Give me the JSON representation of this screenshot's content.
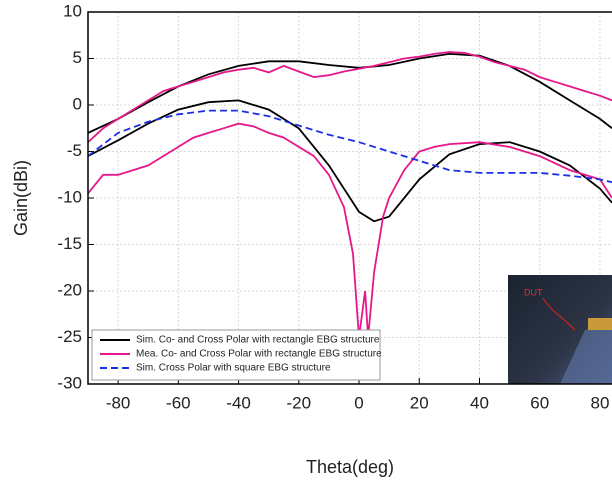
{
  "chart_data": {
    "type": "line",
    "x_label": "Theta(deg)",
    "y_label": "Gain(dBi)",
    "xlim": [
      -90,
      84
    ],
    "ylim": [
      -30,
      10
    ],
    "xticks": [
      -80,
      -60,
      -40,
      -20,
      0,
      20,
      40,
      60,
      80
    ],
    "yticks": [
      -30,
      -25,
      -20,
      -15,
      -10,
      -5,
      0,
      5,
      10
    ],
    "grid": true,
    "legend": "lower left",
    "inset_label": "DUT",
    "series": [
      {
        "name": "Sim. Co- and Cross Polar with rectangle EBG structure",
        "color": "#000000",
        "dash": false,
        "x": [
          -90,
          -80,
          -70,
          -60,
          -50,
          -40,
          -30,
          -20,
          -10,
          0,
          10,
          20,
          30,
          40,
          50,
          60,
          70,
          80,
          84,
          null,
          -90,
          -80,
          -70,
          -60,
          -50,
          -40,
          -30,
          -20,
          -10,
          0,
          5,
          10,
          20,
          30,
          40,
          50,
          60,
          70,
          80,
          84
        ],
        "values": [
          -3,
          -1.5,
          0.3,
          2,
          3.3,
          4.2,
          4.7,
          4.7,
          4.3,
          4.0,
          4.3,
          5.0,
          5.5,
          5.3,
          4.2,
          2.5,
          0.5,
          -1.5,
          -2.5,
          null,
          -5.5,
          -3.8,
          -2,
          -0.5,
          0.3,
          0.5,
          -0.5,
          -2.5,
          -6.5,
          -11.5,
          -12.5,
          -12,
          -8,
          -5.3,
          -4.2,
          -4,
          -5,
          -6.5,
          -9,
          -10.5
        ]
      },
      {
        "name": "Mea. Co- and Cross Polar with rectangle EBG structure",
        "color": "#e6178a",
        "dash": false,
        "x": [
          -90,
          -85,
          -80,
          -75,
          -70,
          -65,
          -60,
          -55,
          -50,
          -45,
          -40,
          -35,
          -30,
          -25,
          -20,
          -15,
          -10,
          -5,
          0,
          5,
          10,
          15,
          20,
          25,
          30,
          35,
          40,
          45,
          50,
          55,
          60,
          65,
          70,
          75,
          80,
          84,
          null,
          -90,
          -85,
          -80,
          -75,
          -70,
          -65,
          -60,
          -55,
          -50,
          -45,
          -40,
          -35,
          -30,
          -25,
          -20,
          -15,
          -10,
          -5,
          -2,
          0,
          2,
          3,
          5,
          8,
          10,
          15,
          20,
          25,
          30,
          40,
          50,
          60,
          70,
          80,
          84
        ],
        "values": [
          -4,
          -2.5,
          -1.5,
          -0.5,
          0.5,
          1.5,
          2,
          2.5,
          3,
          3.5,
          3.8,
          4,
          3.5,
          4.2,
          3.6,
          3,
          3.2,
          3.6,
          3.9,
          4.2,
          4.6,
          5,
          5.2,
          5.5,
          5.7,
          5.6,
          5.2,
          4.6,
          4.2,
          3.8,
          3,
          2.5,
          2,
          1.5,
          1,
          0.5,
          null,
          -9.5,
          -7.5,
          -7.5,
          -7,
          -6.5,
          -5.5,
          -4.5,
          -3.5,
          -3,
          -2.5,
          -2,
          -2.3,
          -3,
          -3.5,
          -4.5,
          -5.5,
          -7.5,
          -11,
          -16,
          -25,
          -20,
          -25,
          -18,
          -12,
          -10,
          -7,
          -5,
          -4.5,
          -4.2,
          -4,
          -4.5,
          -5.5,
          -7,
          -8,
          -10
        ]
      },
      {
        "name": "Sim.  Cross Polar with square EBG structure",
        "color": "#1a2fe6",
        "dash": true,
        "x": [
          -90,
          -80,
          -70,
          -60,
          -50,
          -40,
          -30,
          -20,
          -10,
          0,
          10,
          20,
          30,
          40,
          50,
          60,
          70,
          80,
          84
        ],
        "values": [
          -5.5,
          -3,
          -1.8,
          -1,
          -0.6,
          -0.6,
          -1.2,
          -2.2,
          -3.2,
          -4,
          -5,
          -6,
          -7,
          -7.3,
          -7.3,
          -7.3,
          -7.6,
          -8,
          -8.3
        ]
      }
    ]
  }
}
